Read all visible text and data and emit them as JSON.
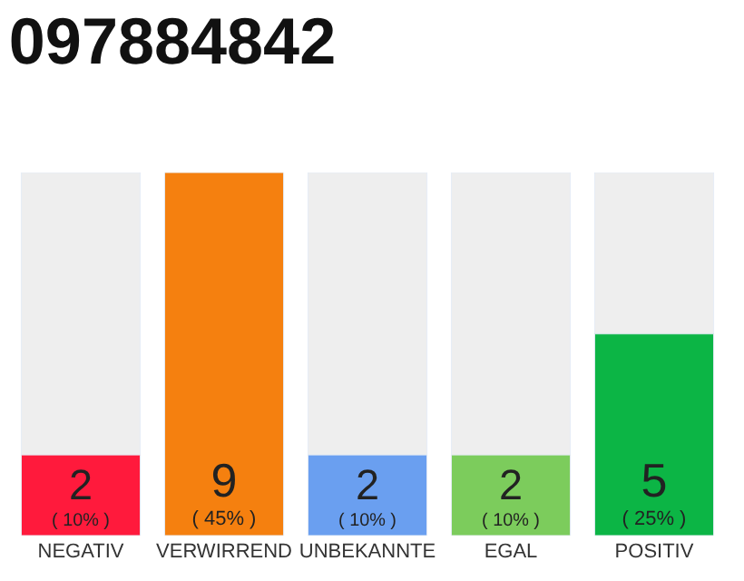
{
  "chart_data": {
    "type": "bar",
    "title": "097884842",
    "categories": [
      "NEGATIV",
      "VERWIRREND",
      "UNBEKANNTE",
      "EGAL",
      "POSITIV"
    ],
    "values": [
      2,
      9,
      2,
      2,
      5
    ],
    "colors": [
      "#ff1a3c",
      "#f5800f",
      "#6a9ff0",
      "#7ccc5c",
      "#0cb545"
    ],
    "value_labels": [
      "2\n( 10% )",
      "9\n( 45% )",
      "2\n( 10% )",
      "2\n( 10% )",
      "5\n( 25% )"
    ],
    "orientation": "vertical"
  }
}
